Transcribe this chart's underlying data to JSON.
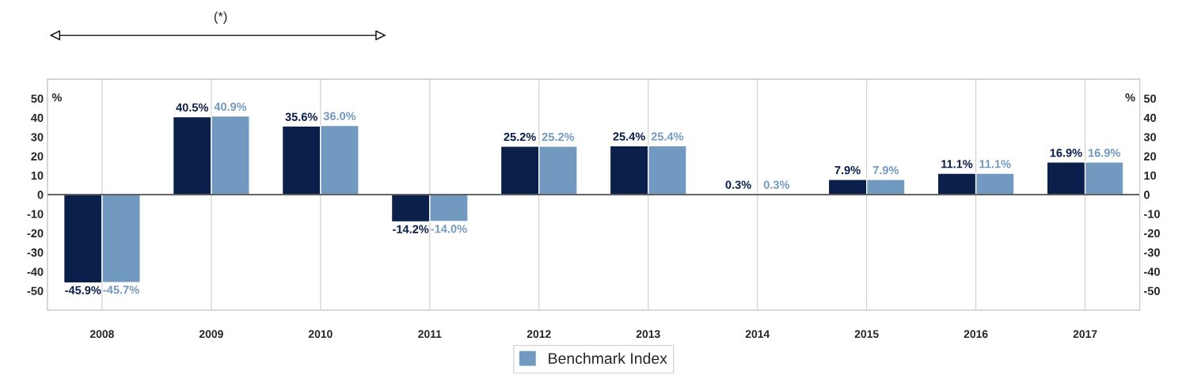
{
  "chart_data": {
    "type": "bar",
    "categories": [
      "2008",
      "2009",
      "2010",
      "2011",
      "2012",
      "2013",
      "2014",
      "2015",
      "2016",
      "2017"
    ],
    "series": [
      {
        "color": "#0b1f4b",
        "values": [
          -45.9,
          40.5,
          35.6,
          -14.2,
          25.2,
          25.4,
          0.3,
          7.9,
          11.1,
          16.9
        ],
        "value_labels": [
          "-45.9%",
          "40.5%",
          "35.6%",
          "-14.2%",
          "25.2%",
          "25.4%",
          "0.3%",
          "7.9%",
          "11.1%",
          "16.9%"
        ]
      },
      {
        "name": "Benchmark Index",
        "color": "#7299bf",
        "values": [
          -45.7,
          40.9,
          36.0,
          -14.0,
          25.2,
          25.4,
          0.3,
          7.9,
          11.1,
          16.9
        ],
        "value_labels": [
          "-45.7%",
          "40.9%",
          "36.0%",
          "-14.0%",
          "25.2%",
          "25.4%",
          "0.3%",
          "7.9%",
          "11.1%",
          "16.9%"
        ]
      }
    ],
    "ylabel": "%",
    "y2label": "%",
    "ylim": [
      -60,
      60
    ],
    "yticks": [
      -50,
      -40,
      -30,
      -20,
      -10,
      0,
      10,
      20,
      30,
      40,
      50
    ],
    "y2lim": [
      -60,
      60
    ],
    "y2ticks": [
      -50,
      -40,
      -30,
      -20,
      -10,
      0,
      10,
      20,
      30,
      40,
      50
    ],
    "annotations": [
      "(*)"
    ],
    "grid": "x",
    "legend": "bottom"
  }
}
